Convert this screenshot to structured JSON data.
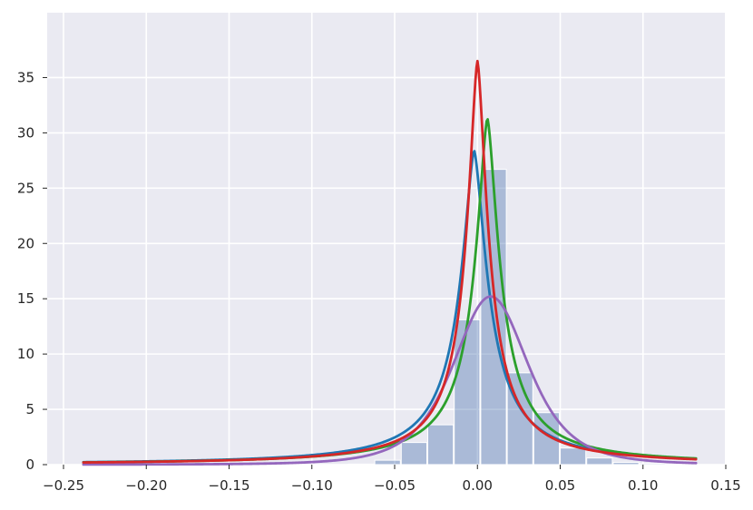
{
  "chart_data": {
    "type": "line",
    "title": "",
    "xlabel": "",
    "ylabel": "",
    "xlim": [
      -0.25,
      0.15
    ],
    "ylim": [
      0,
      37.5
    ],
    "grid": true,
    "background_color": "#EAEAF2",
    "grid_color": "#FFFFFF",
    "xticks": [
      -0.25,
      -0.2,
      -0.15,
      -0.1,
      -0.05,
      0.0,
      0.05,
      0.1,
      0.15
    ],
    "xtick_labels": [
      "−0.25",
      "−0.20",
      "−0.15",
      "−0.10",
      "−0.05",
      "0.00",
      "0.05",
      "0.10",
      "0.15"
    ],
    "yticks": [
      0,
      5,
      10,
      15,
      20,
      25,
      30,
      35
    ],
    "ytick_labels": [
      "0",
      "5",
      "10",
      "15",
      "20",
      "25",
      "30",
      "35"
    ],
    "histogram": {
      "color": "#4C72B0",
      "opacity": 0.4,
      "bin_edges": [
        -0.238,
        -0.222,
        -0.206,
        -0.19,
        -0.174,
        -0.158,
        -0.142,
        -0.126,
        -0.11,
        -0.094,
        -0.078,
        -0.062,
        -0.046,
        -0.03,
        -0.014,
        0.002,
        0.018,
        0.034,
        0.05,
        0.066,
        0.082,
        0.098,
        0.114,
        0.13
      ],
      "densities": [
        0.05,
        0,
        0,
        0,
        0,
        0,
        0,
        0,
        0,
        0,
        0.05,
        0.4,
        2.0,
        3.6,
        13.1,
        26.7,
        8.3,
        4.7,
        1.5,
        0.6,
        0.2,
        0.1,
        0.05
      ]
    },
    "series": [
      {
        "color": "#1F77B4",
        "peak_x": -0.002,
        "peak_y": 28.4,
        "shape": "sharp"
      },
      {
        "color": "#2CA02C",
        "peak_x": 0.006,
        "peak_y": 31.3,
        "shape": "sharp"
      },
      {
        "color": "#9467BD",
        "peak_x": 0.008,
        "peak_y": 15.2,
        "shape": "smooth"
      },
      {
        "color": "#D62728",
        "peak_x": 0.0,
        "peak_y": 36.5,
        "shape": "sharp"
      }
    ],
    "x_range": [
      -0.238,
      0.132
    ]
  }
}
